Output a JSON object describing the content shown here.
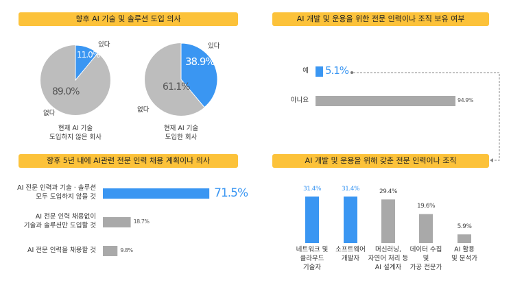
{
  "panels": {
    "p1": {
      "title": "향후  AI 기술 및 솔루션 도입 의사"
    },
    "p2": {
      "title": "AI 개발 및 운용을 위한 전문 인력이나 조직 보유 여부"
    },
    "p3": {
      "title": "향후 5년 내에 AI관련 전문 인력 채용 계획이나 의사"
    },
    "p4": {
      "title": "AI 개발 및 운용을 위해 갖춘 전문 인력이나 조직"
    }
  },
  "colors": {
    "header": "#FCC23A",
    "blue": "#3A96F2",
    "gray": "#A9A9A9",
    "pie_gray": "#BDBDBD"
  },
  "chart_data": [
    {
      "type": "pie",
      "caption": [
        "현재 AI 기술",
        "도입하지 않은 회사"
      ],
      "slices": [
        {
          "name": "있다",
          "value": 11.0,
          "label": "11.0%"
        },
        {
          "name": "없다",
          "value": 89.0,
          "label": "89.0%"
        }
      ]
    },
    {
      "type": "pie",
      "caption": [
        "현재 AI 기술",
        "도입한 회사"
      ],
      "slices": [
        {
          "name": "있다",
          "value": 38.9,
          "label": "38.9%"
        },
        {
          "name": "없다",
          "value": 61.1,
          "label": "61.1%"
        }
      ]
    },
    {
      "type": "bar",
      "orientation": "horizontal",
      "categories": [
        "예",
        "아니요"
      ],
      "values": [
        5.1,
        94.9
      ],
      "labels": [
        "5.1%",
        "94.9%"
      ]
    },
    {
      "type": "bar",
      "orientation": "horizontal",
      "categories": [
        [
          "AI 전문 인력과 기술 · 솔루션",
          "모두 도입하지 않을 것"
        ],
        [
          "AI 전문 인력 채용없이",
          "기술과 솔루션만 도입할 것"
        ],
        [
          "AI 전문 인력을 채용할 것"
        ]
      ],
      "values": [
        71.5,
        18.7,
        9.8
      ],
      "labels": [
        "71.5%",
        "18.7%",
        "9.8%"
      ]
    },
    {
      "type": "bar",
      "orientation": "vertical",
      "categories": [
        [
          "네트워크 및",
          "클라우드",
          "기술자"
        ],
        [
          "소프트웨어",
          "개발자"
        ],
        [
          "머신러닝,",
          "자연어 처리 등",
          "AI 설계자"
        ],
        [
          "데이터 수집",
          "및",
          "가공 전문가"
        ],
        [
          "AI 활용",
          "및 분석가"
        ]
      ],
      "values": [
        31.4,
        31.4,
        29.4,
        19.6,
        5.9
      ],
      "labels": [
        "31.4%",
        "31.4%",
        "29.4%",
        "19.6%",
        "5.9%"
      ]
    }
  ]
}
